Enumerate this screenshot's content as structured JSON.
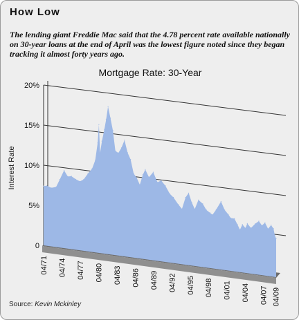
{
  "article": {
    "headline": "How Low",
    "dek": "The lending giant Freddie Mac said that the 4.78 percent rate available nationally on 30-year loans at the end of April was the lowest figure noted since they began tracking it almost forty years ago.",
    "source_label": "Source: ",
    "source_credit": "Kevin Mckinley"
  },
  "colors": {
    "area_fill": "#9db8e6",
    "floor": "#6d6d6d",
    "floor_edge": "#8f8f8f",
    "grid": "#333333",
    "background": "#eeeeee"
  },
  "chart_data": {
    "type": "area",
    "title": "Mortgage Rate: 30-Year",
    "ylabel": "Interest Rate",
    "xlabel": "",
    "ylim": [
      0,
      20
    ],
    "y_ticks": [
      {
        "value": 0,
        "label": "0"
      },
      {
        "value": 5,
        "label": "5%"
      },
      {
        "value": 10,
        "label": "10%"
      },
      {
        "value": 15,
        "label": "15%"
      },
      {
        "value": 20,
        "label": "20%"
      }
    ],
    "x_ticks": [
      "04/71",
      "04/74",
      "04/77",
      "04/80",
      "04/83",
      "04/86",
      "04/89",
      "04/92",
      "04/95",
      "04/98",
      "04/01",
      "04/04",
      "04/07",
      "04/09"
    ],
    "x_start": 1971.25,
    "x_end": 2009.33,
    "grid": true,
    "legend": "none",
    "series": [
      {
        "points": [
          [
            1971.25,
            7.4
          ],
          [
            1971.8,
            7.5
          ],
          [
            1972.5,
            7.3
          ],
          [
            1973.3,
            7.5
          ],
          [
            1973.9,
            8.5
          ],
          [
            1974.6,
            9.7
          ],
          [
            1975.2,
            9.0
          ],
          [
            1975.8,
            9.1
          ],
          [
            1976.5,
            8.8
          ],
          [
            1977.2,
            8.6
          ],
          [
            1977.8,
            8.9
          ],
          [
            1978.5,
            9.7
          ],
          [
            1979.2,
            10.4
          ],
          [
            1979.7,
            11.5
          ],
          [
            1980.1,
            13.7
          ],
          [
            1980.3,
            16.0
          ],
          [
            1980.5,
            12.5
          ],
          [
            1980.8,
            14.0
          ],
          [
            1981.2,
            15.5
          ],
          [
            1981.5,
            16.8
          ],
          [
            1981.8,
            18.4
          ],
          [
            1982.2,
            17.0
          ],
          [
            1982.6,
            15.5
          ],
          [
            1983.0,
            13.0
          ],
          [
            1983.5,
            12.8
          ],
          [
            1984.0,
            13.5
          ],
          [
            1984.5,
            14.5
          ],
          [
            1985.0,
            13.0
          ],
          [
            1985.5,
            12.2
          ],
          [
            1986.0,
            10.5
          ],
          [
            1986.5,
            10.0
          ],
          [
            1987.0,
            9.2
          ],
          [
            1987.5,
            10.5
          ],
          [
            1987.9,
            11.2
          ],
          [
            1988.5,
            10.3
          ],
          [
            1989.2,
            11.0
          ],
          [
            1989.9,
            9.8
          ],
          [
            1990.5,
            10.1
          ],
          [
            1991.2,
            9.5
          ],
          [
            1991.9,
            8.6
          ],
          [
            1992.5,
            8.2
          ],
          [
            1993.3,
            7.4
          ],
          [
            1993.9,
            6.9
          ],
          [
            1994.5,
            8.4
          ],
          [
            1995.0,
            9.0
          ],
          [
            1995.5,
            7.9
          ],
          [
            1996.0,
            7.1
          ],
          [
            1996.6,
            8.3
          ],
          [
            1997.3,
            7.9
          ],
          [
            1997.9,
            7.2
          ],
          [
            1998.5,
            6.9
          ],
          [
            1998.9,
            6.7
          ],
          [
            1999.5,
            7.4
          ],
          [
            2000.3,
            8.5
          ],
          [
            2000.9,
            7.5
          ],
          [
            2001.5,
            7.0
          ],
          [
            2001.9,
            6.6
          ],
          [
            2002.5,
            6.6
          ],
          [
            2003.0,
            5.9
          ],
          [
            2003.4,
            5.3
          ],
          [
            2003.8,
            6.0
          ],
          [
            2004.3,
            5.6
          ],
          [
            2004.6,
            6.2
          ],
          [
            2005.2,
            5.7
          ],
          [
            2005.9,
            6.3
          ],
          [
            2006.5,
            6.7
          ],
          [
            2007.0,
            6.2
          ],
          [
            2007.5,
            6.6
          ],
          [
            2008.0,
            5.9
          ],
          [
            2008.5,
            6.4
          ],
          [
            2008.9,
            6.0
          ],
          [
            2009.1,
            5.2
          ],
          [
            2009.33,
            4.8
          ]
        ]
      }
    ]
  }
}
